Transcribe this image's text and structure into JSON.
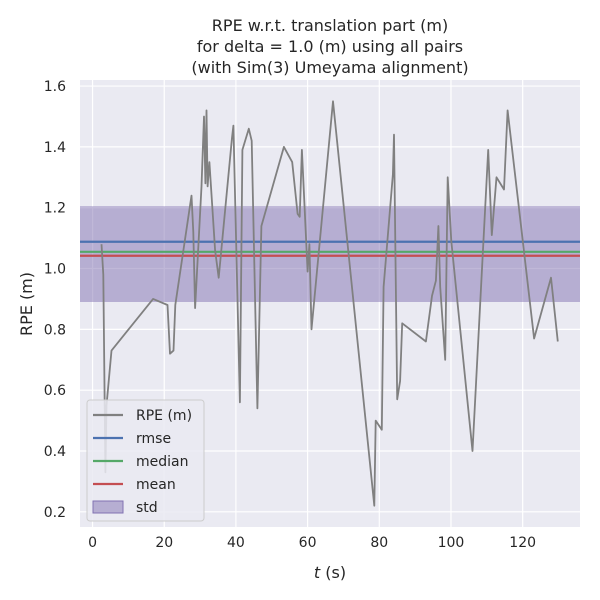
{
  "chart_data": {
    "type": "line",
    "title_lines": [
      "RPE w.r.t. translation part (m)",
      "for delta = 1.0 (m) using all pairs",
      "(with Sim(3) Umeyama alignment)"
    ],
    "xlabel": "t (s)",
    "xlabel_var": "t",
    "xlabel_unit": " (s)",
    "ylabel": "RPE (m)",
    "xlim": [
      -3.5,
      136
    ],
    "ylim": [
      0.15,
      1.62
    ],
    "xticks": [
      "0",
      "20",
      "40",
      "60",
      "80",
      "100",
      "120"
    ],
    "xtick_values": [
      0,
      20,
      40,
      60,
      80,
      100,
      120
    ],
    "yticks": [
      "0.2",
      "0.4",
      "0.6",
      "0.8",
      "1.0",
      "1.2",
      "1.4",
      "1.6"
    ],
    "ytick_values": [
      0.2,
      0.4,
      0.6,
      0.8,
      1.0,
      1.2,
      1.4,
      1.6
    ],
    "grid": true,
    "legend_position": "lower-left",
    "series": [
      {
        "name": "RPE (m)",
        "color": "#808080",
        "x": [
          2.5,
          3.0,
          3.6,
          3.9,
          5.3,
          16.9,
          20.9,
          21.6,
          22.6,
          23.1,
          27.6,
          28.1,
          28.6,
          30.4,
          31.1,
          31.5,
          31.8,
          32.1,
          32.6,
          34.2,
          35.2,
          38.9,
          39.3,
          41.1,
          41.8,
          43.6,
          44.4,
          46.0,
          47.1,
          53.4,
          55.7,
          57.2,
          57.8,
          58.4,
          60.0,
          60.5,
          61.1,
          67.1,
          78.6,
          79.0,
          80.7,
          81.2,
          83.8,
          84.1,
          85.0,
          85.8,
          86.4,
          93.0,
          94.7,
          95.8,
          96.5,
          97.0,
          98.4,
          99.1,
          100.1,
          106.0,
          110.4,
          111.4,
          112.7,
          114.8,
          115.8,
          123.2,
          127.9,
          129.8
        ],
        "y": [
          1.08,
          0.98,
          0.33,
          0.55,
          0.73,
          0.9,
          0.88,
          0.72,
          0.73,
          0.88,
          1.24,
          1.12,
          0.87,
          1.27,
          1.5,
          1.28,
          1.52,
          1.27,
          1.35,
          1.06,
          0.97,
          1.43,
          1.47,
          0.56,
          1.39,
          1.46,
          1.42,
          0.54,
          1.14,
          1.4,
          1.35,
          1.18,
          1.17,
          1.39,
          0.99,
          1.08,
          0.8,
          1.55,
          0.22,
          0.5,
          0.47,
          0.94,
          1.31,
          1.44,
          0.57,
          0.63,
          0.82,
          0.76,
          0.91,
          0.96,
          1.14,
          0.94,
          0.7,
          1.3,
          1.09,
          0.4,
          1.39,
          1.11,
          1.3,
          1.26,
          1.52,
          0.77,
          0.97,
          0.76
        ]
      },
      {
        "name": "rmse",
        "color": "#4c72b0",
        "value": 1.088
      },
      {
        "name": "median",
        "color": "#55a868",
        "value": 1.055
      },
      {
        "name": "mean",
        "color": "#c44e52",
        "value": 1.042
      },
      {
        "name": "std",
        "color": "#8172b2",
        "range": [
          0.89,
          1.205
        ]
      }
    ]
  }
}
